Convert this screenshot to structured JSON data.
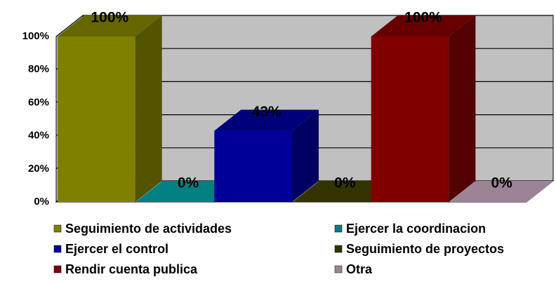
{
  "chart_data": {
    "type": "bar3d",
    "series": [
      {
        "name": "Seguimiento de actividades",
        "color": "#808000",
        "values": [
          100
        ],
        "value_labels": [
          "100%"
        ]
      },
      {
        "name": "Ejercer la coordinacion",
        "color": "#008080",
        "values": [
          0
        ],
        "value_labels": [
          "0%"
        ]
      },
      {
        "name": "Ejercer el control",
        "color": "#000099",
        "values": [
          43
        ],
        "value_labels": [
          "43%"
        ]
      },
      {
        "name": "Seguimiento de proyectos",
        "color": "#333300",
        "values": [
          0
        ],
        "value_labels": [
          "0%"
        ]
      },
      {
        "name": "Rendir cuenta publica",
        "color": "#800000",
        "values": [
          100
        ],
        "value_labels": [
          "100%"
        ]
      },
      {
        "name": "Otra",
        "color": "#9c8496",
        "values": [
          0
        ],
        "value_labels": [
          "0%"
        ]
      }
    ],
    "ylim": [
      0,
      100
    ],
    "yticks": [
      {
        "value": 0,
        "label": "0%"
      },
      {
        "value": 20,
        "label": "20%"
      },
      {
        "value": 40,
        "label": "40%"
      },
      {
        "value": 60,
        "label": "60%"
      },
      {
        "value": 80,
        "label": "80%"
      },
      {
        "value": 100,
        "label": "100%"
      }
    ],
    "grid": true
  }
}
